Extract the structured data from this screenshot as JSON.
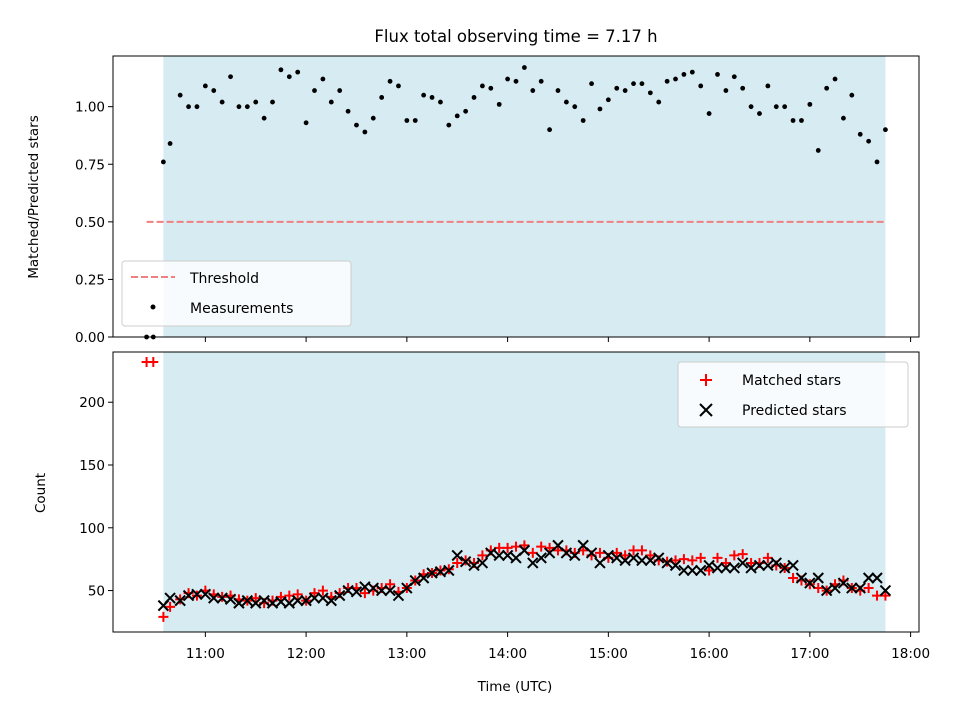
{
  "figure": {
    "title": "Flux total observing time = 7.17 h"
  },
  "colors": {
    "shade": "#add8e6",
    "threshold": "#f08080",
    "measurements": "#000000",
    "matched": "#ff0000",
    "predicted": "#000000"
  },
  "chart_data": [
    {
      "type": "scatter",
      "panel": "top",
      "ylabel": "Matched/Predicted stars",
      "xlabel": "",
      "ylim": [
        0,
        1.22
      ],
      "yticks": [
        0.0,
        0.25,
        0.5,
        0.75,
        1.0
      ],
      "ytick_labels": [
        "0.00",
        "0.25",
        "0.50",
        "0.75",
        "1.00"
      ],
      "grid": false,
      "legend_position": "lower-left",
      "shaded_span": [
        "10:35",
        "17:45"
      ],
      "series": [
        {
          "name": "Threshold",
          "kind": "dashed-line",
          "x": [
            "10:25",
            "17:45"
          ],
          "y": [
            0.5,
            0.5
          ]
        },
        {
          "name": "Measurements",
          "kind": "dots",
          "x": [
            "10:25",
            "10:29",
            "10:35",
            "10:39",
            "10:45",
            "10:50",
            "10:55",
            "11:00",
            "11:05",
            "11:10",
            "11:15",
            "11:20",
            "11:25",
            "11:30",
            "11:35",
            "11:40",
            "11:45",
            "11:50",
            "11:55",
            "12:00",
            "12:05",
            "12:10",
            "12:15",
            "12:20",
            "12:25",
            "12:30",
            "12:35",
            "12:40",
            "12:45",
            "12:50",
            "12:55",
            "13:00",
            "13:05",
            "13:10",
            "13:15",
            "13:20",
            "13:25",
            "13:30",
            "13:35",
            "13:40",
            "13:45",
            "13:50",
            "13:55",
            "14:00",
            "14:05",
            "14:10",
            "14:15",
            "14:20",
            "14:25",
            "14:30",
            "14:35",
            "14:40",
            "14:45",
            "14:50",
            "14:55",
            "15:00",
            "15:05",
            "15:10",
            "15:15",
            "15:20",
            "15:25",
            "15:30",
            "15:35",
            "15:40",
            "15:45",
            "15:50",
            "15:55",
            "16:00",
            "16:05",
            "16:10",
            "16:15",
            "16:20",
            "16:25",
            "16:30",
            "16:35",
            "16:40",
            "16:45",
            "16:50",
            "16:55",
            "17:00",
            "17:05",
            "17:10",
            "17:15",
            "17:20",
            "17:25",
            "17:30",
            "17:35",
            "17:40",
            "17:45"
          ],
          "y": [
            0.0,
            0.0,
            0.76,
            0.84,
            1.05,
            1.0,
            1.0,
            1.09,
            1.07,
            1.02,
            1.13,
            1.0,
            1.0,
            1.02,
            0.95,
            1.02,
            1.16,
            1.13,
            1.15,
            0.93,
            1.07,
            1.12,
            1.02,
            1.07,
            0.98,
            0.92,
            0.89,
            0.95,
            1.04,
            1.11,
            1.09,
            0.94,
            0.94,
            1.05,
            1.04,
            1.02,
            0.92,
            0.96,
            0.98,
            1.04,
            1.09,
            1.08,
            1.01,
            1.12,
            1.11,
            1.17,
            1.07,
            1.11,
            0.9,
            1.07,
            1.02,
            1.0,
            0.94,
            1.1,
            0.99,
            1.03,
            1.08,
            1.07,
            1.1,
            1.1,
            1.06,
            1.02,
            1.11,
            1.12,
            1.14,
            1.15,
            1.09,
            0.97,
            1.14,
            1.07,
            1.13,
            1.08,
            1.0,
            0.97,
            1.09,
            1.0,
            1.0,
            0.94,
            0.94,
            1.01,
            0.81,
            1.08,
            1.12,
            0.95,
            1.05,
            0.88,
            0.85,
            0.76,
            0.9
          ]
        }
      ]
    },
    {
      "type": "scatter",
      "panel": "bottom",
      "ylabel": "Count",
      "xlabel": "Time (UTC)",
      "ylim": [
        17,
        240
      ],
      "yticks": [
        50,
        100,
        150,
        200
      ],
      "ytick_labels": [
        "50",
        "100",
        "150",
        "200"
      ],
      "xlim": [
        "10:05",
        "18:05"
      ],
      "xticks": [
        "11:00",
        "12:00",
        "13:00",
        "14:00",
        "15:00",
        "16:00",
        "17:00",
        "18:00"
      ],
      "grid": false,
      "legend_position": "top-right",
      "shaded_span": [
        "10:35",
        "17:45"
      ],
      "series": [
        {
          "name": "Matched stars",
          "kind": "plus",
          "x": [
            "10:25",
            "10:29",
            "10:35",
            "10:39",
            "10:45",
            "10:50",
            "10:55",
            "11:00",
            "11:05",
            "11:10",
            "11:15",
            "11:20",
            "11:25",
            "11:30",
            "11:35",
            "11:40",
            "11:45",
            "11:50",
            "11:55",
            "12:00",
            "12:05",
            "12:10",
            "12:15",
            "12:20",
            "12:25",
            "12:30",
            "12:35",
            "12:40",
            "12:45",
            "12:50",
            "12:55",
            "13:00",
            "13:05",
            "13:10",
            "13:15",
            "13:20",
            "13:25",
            "13:30",
            "13:35",
            "13:40",
            "13:45",
            "13:50",
            "13:55",
            "14:00",
            "14:05",
            "14:10",
            "14:15",
            "14:20",
            "14:25",
            "14:30",
            "14:35",
            "14:40",
            "14:45",
            "14:50",
            "14:55",
            "15:00",
            "15:05",
            "15:10",
            "15:15",
            "15:20",
            "15:25",
            "15:30",
            "15:35",
            "15:40",
            "15:45",
            "15:50",
            "15:55",
            "16:00",
            "16:05",
            "16:10",
            "16:15",
            "16:20",
            "16:25",
            "16:30",
            "16:35",
            "16:40",
            "16:45",
            "16:50",
            "16:55",
            "17:00",
            "17:05",
            "17:10",
            "17:15",
            "17:20",
            "17:25",
            "17:30",
            "17:35",
            "17:40",
            "17:45"
          ],
          "y": [
            232,
            232,
            29,
            37,
            43,
            48,
            46,
            50,
            47,
            45,
            46,
            43,
            42,
            44,
            40,
            42,
            45,
            46,
            47,
            42,
            48,
            50,
            45,
            48,
            52,
            52,
            48,
            50,
            52,
            55,
            49,
            52,
            58,
            63,
            64,
            66,
            67,
            72,
            74,
            72,
            78,
            82,
            84,
            84,
            85,
            86,
            80,
            85,
            84,
            82,
            82,
            80,
            82,
            78,
            80,
            76,
            80,
            78,
            82,
            82,
            78,
            74,
            73,
            74,
            75,
            74,
            76,
            66,
            76,
            72,
            78,
            79,
            72,
            72,
            76,
            70,
            68,
            60,
            58,
            55,
            52,
            50,
            55,
            58,
            52,
            50,
            52,
            46,
            46
          ]
        },
        {
          "name": "Predicted stars",
          "kind": "x",
          "x": [
            "10:35",
            "10:39",
            "10:45",
            "10:50",
            "10:55",
            "11:00",
            "11:05",
            "11:10",
            "11:15",
            "11:20",
            "11:25",
            "11:30",
            "11:35",
            "11:40",
            "11:45",
            "11:50",
            "11:55",
            "12:00",
            "12:05",
            "12:10",
            "12:15",
            "12:20",
            "12:25",
            "12:30",
            "12:35",
            "12:40",
            "12:45",
            "12:50",
            "12:55",
            "13:00",
            "13:05",
            "13:10",
            "13:15",
            "13:20",
            "13:25",
            "13:30",
            "13:35",
            "13:40",
            "13:45",
            "13:50",
            "13:55",
            "14:00",
            "14:05",
            "14:10",
            "14:15",
            "14:20",
            "14:25",
            "14:30",
            "14:35",
            "14:40",
            "14:45",
            "14:50",
            "14:55",
            "15:00",
            "15:05",
            "15:10",
            "15:15",
            "15:20",
            "15:25",
            "15:30",
            "15:35",
            "15:40",
            "15:45",
            "15:50",
            "15:55",
            "16:00",
            "16:05",
            "16:10",
            "16:15",
            "16:20",
            "16:25",
            "16:30",
            "16:35",
            "16:40",
            "16:45",
            "16:50",
            "16:55",
            "17:00",
            "17:05",
            "17:10",
            "17:15",
            "17:20",
            "17:25",
            "17:30",
            "17:35",
            "17:40",
            "17:45"
          ],
          "y": [
            38,
            44,
            42,
            46,
            47,
            47,
            44,
            44,
            43,
            40,
            42,
            40,
            42,
            40,
            41,
            40,
            42,
            42,
            44,
            44,
            42,
            46,
            50,
            49,
            53,
            52,
            50,
            50,
            46,
            52,
            58,
            60,
            64,
            65,
            66,
            78,
            73,
            70,
            72,
            80,
            78,
            78,
            76,
            82,
            72,
            76,
            80,
            86,
            80,
            78,
            86,
            80,
            72,
            78,
            76,
            74,
            76,
            74,
            74,
            76,
            72,
            70,
            66,
            66,
            66,
            70,
            68,
            68,
            68,
            72,
            68,
            70,
            70,
            72,
            68,
            70,
            60,
            56,
            60,
            50,
            52,
            56,
            52,
            52,
            60,
            60,
            50
          ]
        }
      ]
    }
  ]
}
